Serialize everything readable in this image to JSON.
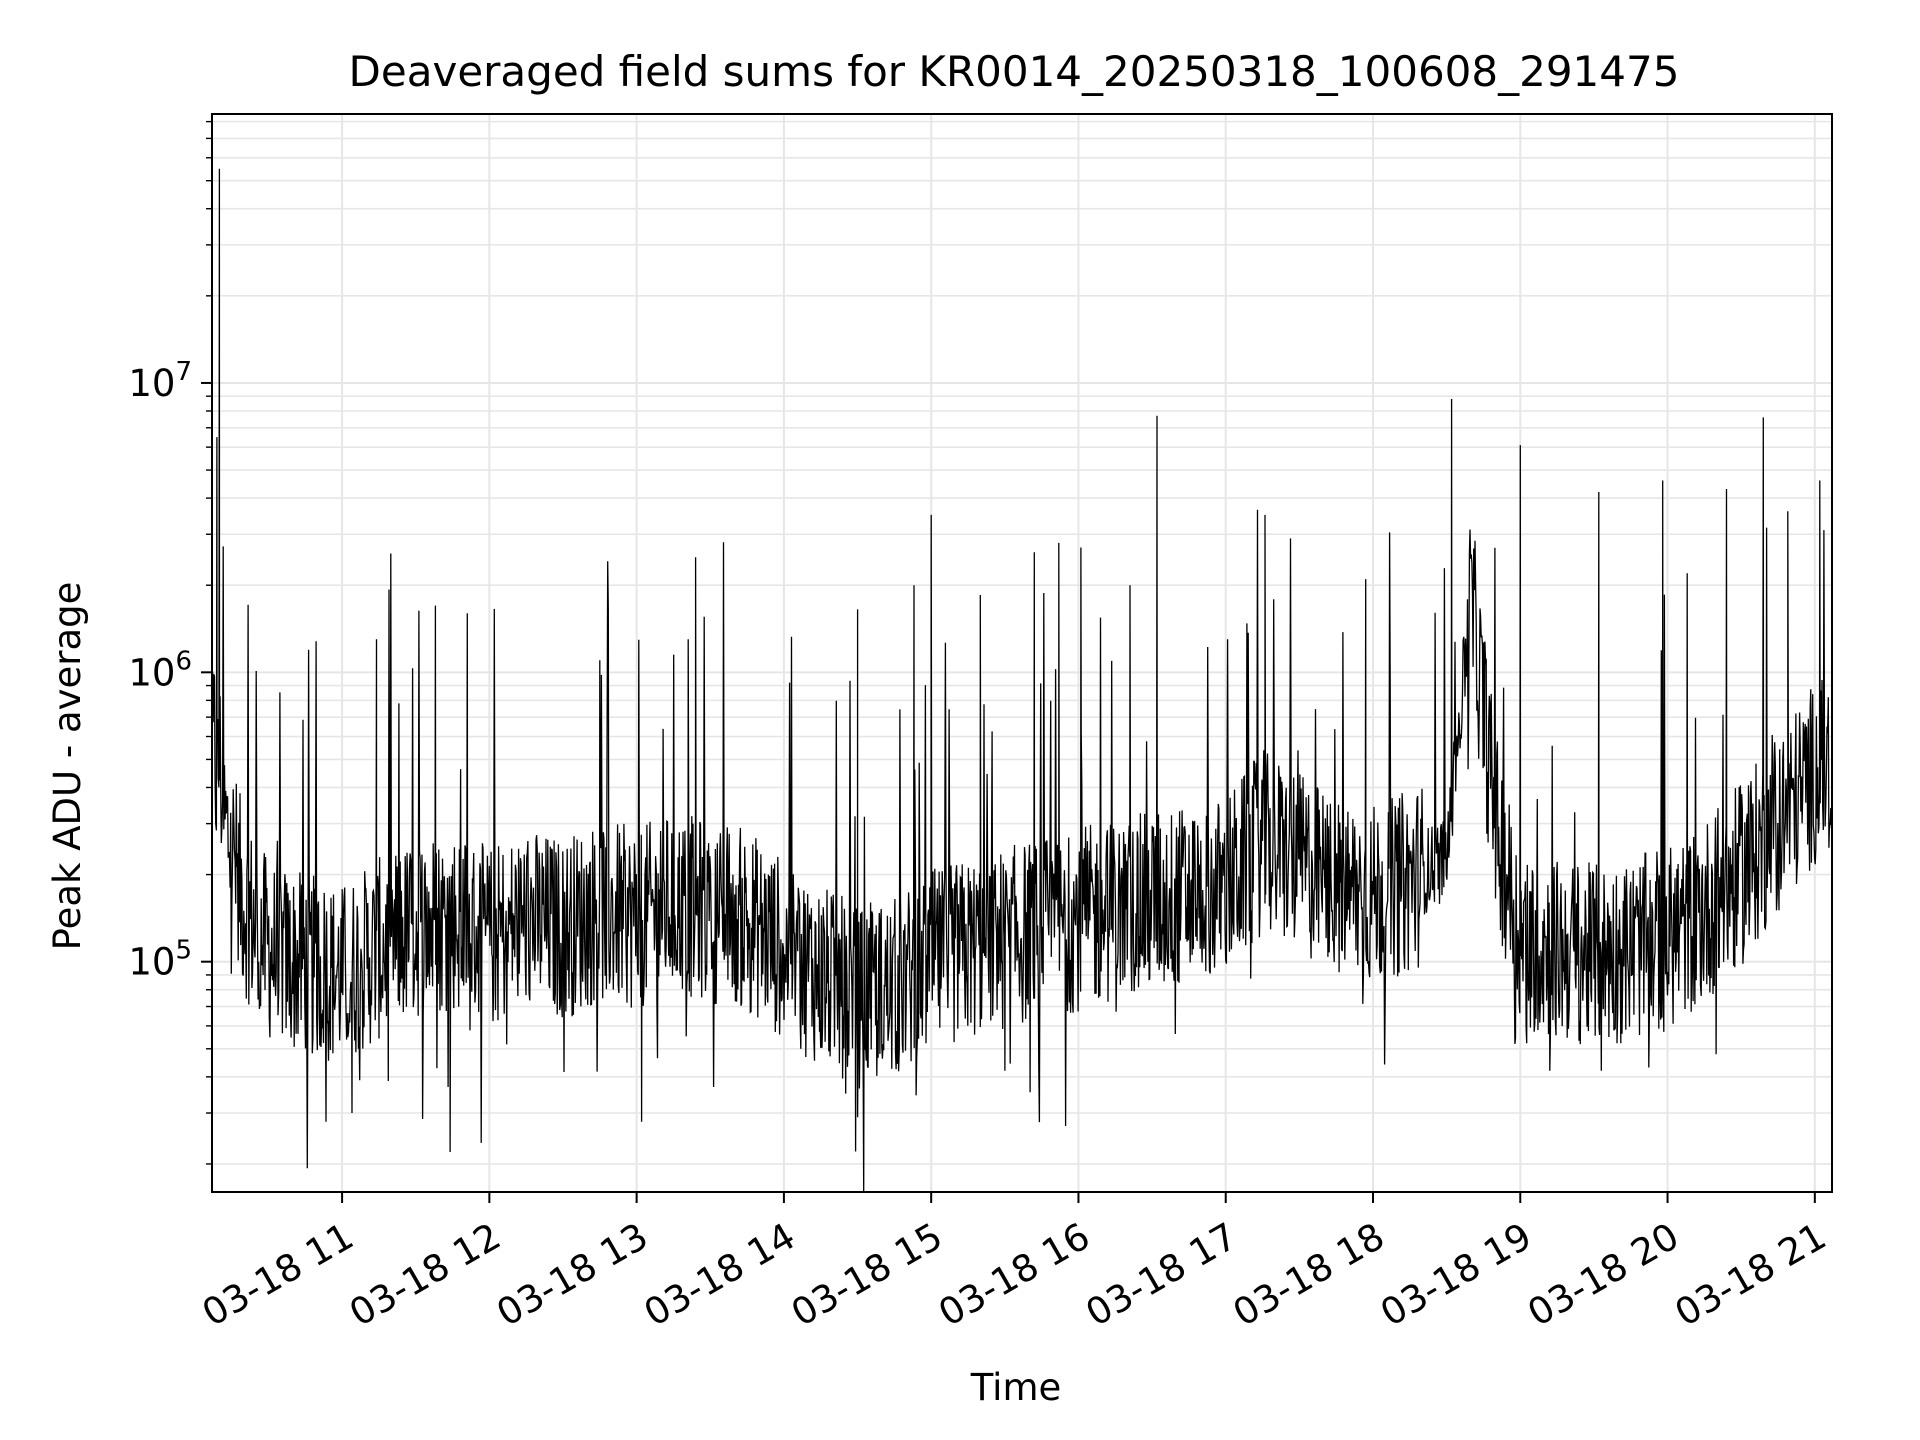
{
  "chart_data": {
    "type": "line",
    "title": "Deaveraged field sums for KR0014_20250318_100608_291475",
    "xlabel": "Time",
    "ylabel": "Peak ADU - average",
    "yscale": "log",
    "grid": true,
    "line_color": "#000000",
    "grid_color": "#e6e6e6",
    "xlim": [
      "2025-03-18 10:07",
      "2025-03-18 21:07"
    ],
    "ylim": [
      16000,
      85000000
    ],
    "x_ticks": [
      "2025-03-18 11:00",
      "2025-03-18 12:00",
      "2025-03-18 13:00",
      "2025-03-18 14:00",
      "2025-03-18 15:00",
      "2025-03-18 16:00",
      "2025-03-18 17:00",
      "2025-03-18 18:00",
      "2025-03-18 19:00",
      "2025-03-18 20:00",
      "2025-03-18 21:00"
    ],
    "x_tick_labels": [
      "03-18 11",
      "03-18 12",
      "03-18 13",
      "03-18 14",
      "03-18 15",
      "03-18 16",
      "03-18 17",
      "03-18 18",
      "03-18 19",
      "03-18 20",
      "03-18 21"
    ],
    "y_ticks": [
      {
        "value": 100000,
        "base": "10",
        "exp": "5"
      },
      {
        "value": 1000000,
        "base": "10",
        "exp": "6"
      },
      {
        "value": 10000000,
        "base": "10",
        "exp": "7"
      }
    ],
    "series": [
      {
        "x": [
          "2025-03-18 10:07",
          "2025-03-18 10:08",
          "2025-03-18 10:09",
          "2025-03-18 10:10",
          "2025-03-18 10:12",
          "2025-03-18 10:15",
          "2025-03-18 10:20",
          "2025-03-18 10:25",
          "2025-03-18 10:30",
          "2025-03-18 10:40",
          "2025-03-18 10:50",
          "2025-03-18 11:00",
          "2025-03-18 11:15",
          "2025-03-18 11:30",
          "2025-03-18 11:45",
          "2025-03-18 12:00",
          "2025-03-18 12:15",
          "2025-03-18 12:30",
          "2025-03-18 12:45",
          "2025-03-18 13:00",
          "2025-03-18 13:15",
          "2025-03-18 13:30",
          "2025-03-18 13:45",
          "2025-03-18 14:00",
          "2025-03-18 14:15",
          "2025-03-18 14:30",
          "2025-03-18 14:45",
          "2025-03-18 15:00",
          "2025-03-18 15:15",
          "2025-03-18 15:30",
          "2025-03-18 15:45",
          "2025-03-18 16:00",
          "2025-03-18 16:15",
          "2025-03-18 16:30",
          "2025-03-18 16:45",
          "2025-03-18 17:00",
          "2025-03-18 17:15",
          "2025-03-18 17:30",
          "2025-03-18 17:45",
          "2025-03-18 18:00",
          "2025-03-18 18:15",
          "2025-03-18 18:30",
          "2025-03-18 18:40",
          "2025-03-18 18:50",
          "2025-03-18 19:00",
          "2025-03-18 19:15",
          "2025-03-18 19:30",
          "2025-03-18 19:45",
          "2025-03-18 20:00",
          "2025-03-18 20:15",
          "2025-03-18 20:30",
          "2025-03-18 20:45",
          "2025-03-18 21:00",
          "2025-03-18 21:07"
        ],
        "y": [
          450000,
          600000,
          380000,
          520000,
          300000,
          250000,
          160000,
          130000,
          110000,
          100000,
          95000,
          90000,
          110000,
          130000,
          140000,
          120000,
          140000,
          130000,
          150000,
          140000,
          160000,
          150000,
          140000,
          110000,
          90000,
          75000,
          80000,
          100000,
          110000,
          120000,
          130000,
          140000,
          150000,
          160000,
          170000,
          180000,
          260000,
          220000,
          180000,
          170000,
          190000,
          230000,
          1800000,
          300000,
          120000,
          110000,
          105000,
          110000,
          120000,
          150000,
          200000,
          300000,
          450000,
          500000
        ]
      }
    ],
    "spikes": [
      {
        "x": "2025-03-18 10:10",
        "y": 55000000
      },
      {
        "x": "2025-03-18 10:09",
        "y": 6500000
      },
      {
        "x": "2025-03-18 11:38",
        "y": 1700000
      },
      {
        "x": "2025-03-18 11:51",
        "y": 1600000
      },
      {
        "x": "2025-03-18 11:14",
        "y": 1300000
      },
      {
        "x": "2025-03-18 12:45",
        "y": 1100000
      },
      {
        "x": "2025-03-18 13:24",
        "y": 2500000
      },
      {
        "x": "2025-03-18 13:21",
        "y": 1300000
      },
      {
        "x": "2025-03-18 14:30",
        "y": 1650000
      },
      {
        "x": "2025-03-18 14:53",
        "y": 2000000
      },
      {
        "x": "2025-03-18 15:00",
        "y": 3500000
      },
      {
        "x": "2025-03-18 15:20",
        "y": 1850000
      },
      {
        "x": "2025-03-18 15:42",
        "y": 2600000
      },
      {
        "x": "2025-03-18 15:52",
        "y": 2800000
      },
      {
        "x": "2025-03-18 16:01",
        "y": 2700000
      },
      {
        "x": "2025-03-18 16:21",
        "y": 2000000
      },
      {
        "x": "2025-03-18 16:32",
        "y": 7700000
      },
      {
        "x": "2025-03-18 17:16",
        "y": 3500000
      },
      {
        "x": "2025-03-18 17:57",
        "y": 2100000
      },
      {
        "x": "2025-03-18 18:32",
        "y": 8800000
      },
      {
        "x": "2025-03-18 19:00",
        "y": 6100000
      },
      {
        "x": "2025-03-18 19:32",
        "y": 4200000
      },
      {
        "x": "2025-03-18 19:58",
        "y": 4600000
      },
      {
        "x": "2025-03-18 20:08",
        "y": 2200000
      },
      {
        "x": "2025-03-18 20:24",
        "y": 4300000
      },
      {
        "x": "2025-03-18 20:39",
        "y": 7600000
      },
      {
        "x": "2025-03-18 20:49",
        "y": 3600000
      },
      {
        "x": "2025-03-18 21:02",
        "y": 4600000
      }
    ],
    "dips": [
      {
        "x": "2025-03-18 11:44",
        "y": 22000
      },
      {
        "x": "2025-03-18 13:02",
        "y": 28000
      },
      {
        "x": "2025-03-18 14:30",
        "y": 29000
      },
      {
        "x": "2025-03-18 11:04",
        "y": 30000
      },
      {
        "x": "2025-03-18 15:30",
        "y": 42000
      },
      {
        "x": "2025-03-18 19:12",
        "y": 42000
      },
      {
        "x": "2025-03-18 19:33",
        "y": 42000
      }
    ]
  }
}
